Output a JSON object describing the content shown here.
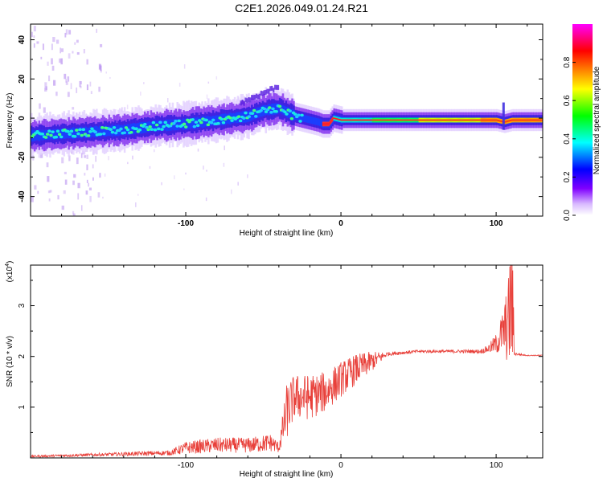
{
  "title": "C2E1.2026.049.01.24.R21",
  "chart_data": [
    {
      "type": "heatmap",
      "name": "spectrogram",
      "xlabel": "Height of straight line (km)",
      "ylabel": "Frequency (Hz)",
      "xlim": [
        -200,
        130
      ],
      "ylim": [
        -50,
        48
      ],
      "x_ticks": [
        -100,
        0,
        100
      ],
      "y_ticks": [
        -40,
        -20,
        0,
        20,
        40
      ],
      "ridge_x": [
        -200,
        -180,
        -160,
        -140,
        -120,
        -100,
        -80,
        -60,
        -50,
        -40,
        -35,
        -30,
        -25,
        -20,
        -15,
        -12,
        -8,
        -5,
        0,
        20,
        50,
        80,
        100,
        105,
        110,
        130
      ],
      "ridge_freq": [
        -9,
        -8,
        -7,
        -6,
        -4,
        -3,
        -1,
        1,
        4,
        5,
        3,
        1,
        0,
        -1,
        -2,
        -3,
        -3,
        0,
        -1,
        -1,
        -1,
        -1,
        -1,
        -2,
        -1,
        -1
      ],
      "colorbar": {
        "label": "Normalized spectral amplitude",
        "range": [
          0,
          1
        ],
        "ticks": [
          "0.0",
          "0.2",
          "0.4",
          "0.6",
          "0.8"
        ],
        "colors": [
          "#ffffff",
          "#8000ff",
          "#0000ff",
          "#00ffff",
          "#00ff00",
          "#ffff00",
          "#ff8000",
          "#ff0000",
          "#ff00ff"
        ]
      }
    },
    {
      "type": "line",
      "name": "snr",
      "xlabel": "Height of straight line (km)",
      "ylabel": "SNR (10 * v/v)",
      "y_multiplier": "(x10",
      "y_multiplier_exp": "4",
      "y_multiplier_close": ")",
      "xlim": [
        -200,
        130
      ],
      "ylim": [
        0,
        3.8
      ],
      "x_ticks": [
        -100,
        0,
        100
      ],
      "y_ticks": [
        1,
        2,
        3
      ],
      "series_color": "#e8403a",
      "envelope_x": [
        -200,
        -160,
        -110,
        -100,
        -80,
        -60,
        -45,
        -40,
        -35,
        -30,
        -20,
        -10,
        0,
        10,
        20,
        30,
        50,
        70,
        90,
        95,
        100,
        105,
        108,
        110,
        112,
        120,
        130
      ],
      "envelope_y": [
        0.03,
        0.06,
        0.1,
        0.2,
        0.25,
        0.25,
        0.3,
        0.2,
        0.9,
        1.2,
        1.2,
        1.3,
        1.55,
        1.75,
        1.9,
        2.05,
        2.1,
        2.1,
        2.1,
        2.15,
        2.25,
        2.5,
        2.7,
        3.2,
        2.05,
        2.02,
        2.02
      ],
      "noise_amp": [
        0.02,
        0.03,
        0.05,
        0.12,
        0.15,
        0.15,
        0.18,
        0.1,
        0.55,
        0.45,
        0.45,
        0.4,
        0.35,
        0.3,
        0.2,
        0.04,
        0.03,
        0.03,
        0.04,
        0.08,
        0.2,
        0.5,
        0.9,
        1.6,
        0.03,
        0.01,
        0.01
      ]
    }
  ]
}
